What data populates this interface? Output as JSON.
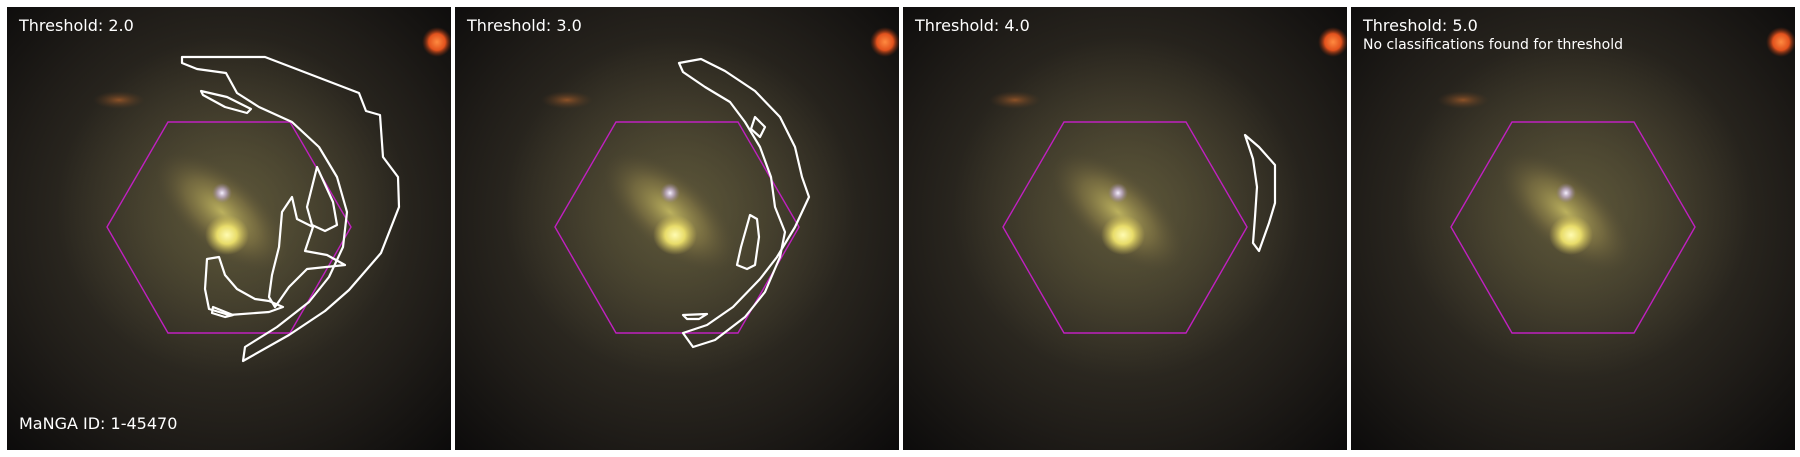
{
  "figure": {
    "manga_id_label": "MaNGA ID: 1-45470",
    "panels": [
      {
        "threshold_label": "Threshold: 2.0",
        "note": ""
      },
      {
        "threshold_label": "Threshold: 3.0",
        "note": ""
      },
      {
        "threshold_label": "Threshold: 4.0",
        "note": ""
      },
      {
        "threshold_label": "Threshold: 5.0",
        "note": "No classifications found for threshold"
      }
    ],
    "colors": {
      "background": "#ffffff",
      "hexagon": "#c020c0",
      "contour": "#ffffff",
      "text": "#ffffff"
    }
  }
}
